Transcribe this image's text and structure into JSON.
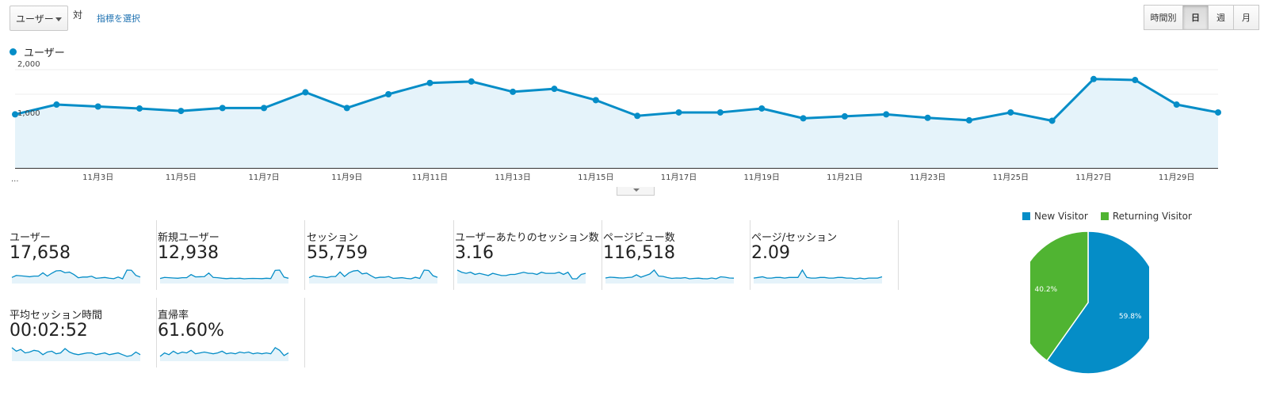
{
  "toolbar": {
    "metric_select": "ユーザー",
    "vs_label": "対",
    "select_metric_link": "指標を選択",
    "periods": [
      "時間別",
      "日",
      "週",
      "月"
    ],
    "active_period": "日"
  },
  "main_chart": {
    "legend": "ユーザー",
    "series_color": "#058dc7",
    "fill_color": "#e5f3fa",
    "leading_tick": "...",
    "y_labels": [
      "2,000",
      "1,000"
    ],
    "chart_data": {
      "type": "area",
      "x": [
        "11月1日",
        "11月2日",
        "11月3日",
        "11月4日",
        "11月5日",
        "11月6日",
        "11月7日",
        "11月8日",
        "11月9日",
        "11月10日",
        "11月11日",
        "11月12日",
        "11月13日",
        "11月14日",
        "11月15日",
        "11月16日",
        "11月17日",
        "11月18日",
        "11月19日",
        "11月20日",
        "11月21日",
        "11月22日",
        "11月23日",
        "11月24日",
        "11月25日",
        "11月26日",
        "11月27日",
        "11月28日",
        "11月29日",
        "11月30日"
      ],
      "x_tick_labels": [
        "11月3日",
        "11月5日",
        "11月7日",
        "11月9日",
        "11月11日",
        "11月13日",
        "11月15日",
        "11月17日",
        "11月19日",
        "11月21日",
        "11月23日",
        "11月25日",
        "11月27日",
        "11月29日"
      ],
      "series": [
        {
          "name": "ユーザー",
          "values": [
            1090,
            1290,
            1250,
            1210,
            1160,
            1220,
            1220,
            1540,
            1220,
            1500,
            1730,
            1760,
            1550,
            1610,
            1380,
            1060,
            1130,
            1130,
            1210,
            1010,
            1050,
            1090,
            1020,
            970,
            1130,
            960,
            1810,
            1790,
            1290,
            1130
          ]
        }
      ],
      "ylim": [
        0,
        2000
      ],
      "yticks": [
        1000,
        2000
      ],
      "grid": true
    }
  },
  "scorecards": [
    {
      "label": "ユーザー",
      "value": "17,658",
      "spark": [
        1090,
        1290,
        1250,
        1210,
        1160,
        1220,
        1220,
        1540,
        1220,
        1500,
        1730,
        1760,
        1550,
        1610,
        1380,
        1060,
        1130,
        1130,
        1210,
        1010,
        1050,
        1090,
        1020,
        970,
        1130,
        960,
        1810,
        1790,
        1290,
        1130
      ]
    },
    {
      "label": "新規ユーザー",
      "value": "12,938",
      "spark": [
        700,
        780,
        760,
        740,
        720,
        760,
        760,
        990,
        820,
        830,
        840,
        1100,
        780,
        760,
        720,
        690,
        720,
        700,
        720,
        680,
        700,
        710,
        700,
        690,
        720,
        700,
        1300,
        1320,
        800,
        720
      ]
    },
    {
      "label": "セッション",
      "value": "55,759",
      "spark": [
        1800,
        1900,
        1860,
        1840,
        1800,
        1860,
        1860,
        2100,
        1860,
        2050,
        2150,
        2180,
        2000,
        2040,
        1900,
        1780,
        1820,
        1820,
        1860,
        1760,
        1780,
        1800,
        1760,
        1740,
        1820,
        1760,
        2200,
        2180,
        1900,
        1820
      ]
    },
    {
      "label": "ユーザーあたりのセッション数",
      "value": "3.16",
      "spark": [
        3.2,
        3.18,
        3.17,
        3.18,
        3.16,
        3.17,
        3.16,
        3.15,
        3.17,
        3.16,
        3.15,
        3.15,
        3.16,
        3.16,
        3.17,
        3.18,
        3.17,
        3.17,
        3.16,
        3.18,
        3.17,
        3.17,
        3.17,
        3.18,
        3.16,
        3.18,
        3.12,
        3.12,
        3.16,
        3.17
      ]
    },
    {
      "label": "ページビュー数",
      "value": "116,518",
      "spark": [
        3800,
        3900,
        3870,
        3820,
        3800,
        3860,
        3900,
        4200,
        3900,
        4100,
        4300,
        4800,
        4050,
        4000,
        3850,
        3750,
        3800,
        3780,
        3850,
        3700,
        3750,
        3780,
        3720,
        3700,
        3800,
        3700,
        3950,
        3900,
        3800,
        3780
      ]
    },
    {
      "label": "ページ/セッション",
      "value": "2.09",
      "spark": [
        2.08,
        2.09,
        2.1,
        2.08,
        2.08,
        2.09,
        2.09,
        2.08,
        2.09,
        2.09,
        2.09,
        2.2,
        2.09,
        2.08,
        2.08,
        2.09,
        2.09,
        2.08,
        2.08,
        2.09,
        2.09,
        2.08,
        2.08,
        2.07,
        2.08,
        2.07,
        2.08,
        2.08,
        2.08,
        2.1
      ]
    },
    {
      "label": "平均セッション時間",
      "value": "00:02:52",
      "spark": [
        180,
        172,
        176,
        168,
        170,
        174,
        172,
        164,
        170,
        172,
        166,
        168,
        178,
        170,
        166,
        164,
        166,
        168,
        168,
        164,
        166,
        168,
        164,
        166,
        168,
        164,
        160,
        162,
        170,
        164
      ]
    },
    {
      "label": "直帰率",
      "value": "61.60%",
      "spark": [
        61.2,
        61.6,
        61.4,
        61.8,
        61.5,
        61.7,
        61.6,
        61.9,
        61.5,
        61.6,
        61.7,
        61.6,
        61.5,
        61.6,
        61.8,
        61.5,
        61.6,
        61.5,
        61.7,
        61.6,
        61.7,
        61.5,
        61.6,
        61.5,
        61.6,
        61.5,
        62.2,
        61.9,
        61.3,
        61.6
      ]
    }
  ],
  "spark_color": "#058dc7",
  "spark_fill": "#e5f3fa",
  "pie": {
    "chart_data": {
      "type": "pie",
      "labels": [
        "New Visitor",
        "Returning Visitor"
      ],
      "values": [
        59.8,
        40.2
      ],
      "value_labels": [
        "59.8%",
        "40.2%"
      ],
      "colors": [
        "#058dc7",
        "#50b432"
      ],
      "legend": "top"
    }
  }
}
